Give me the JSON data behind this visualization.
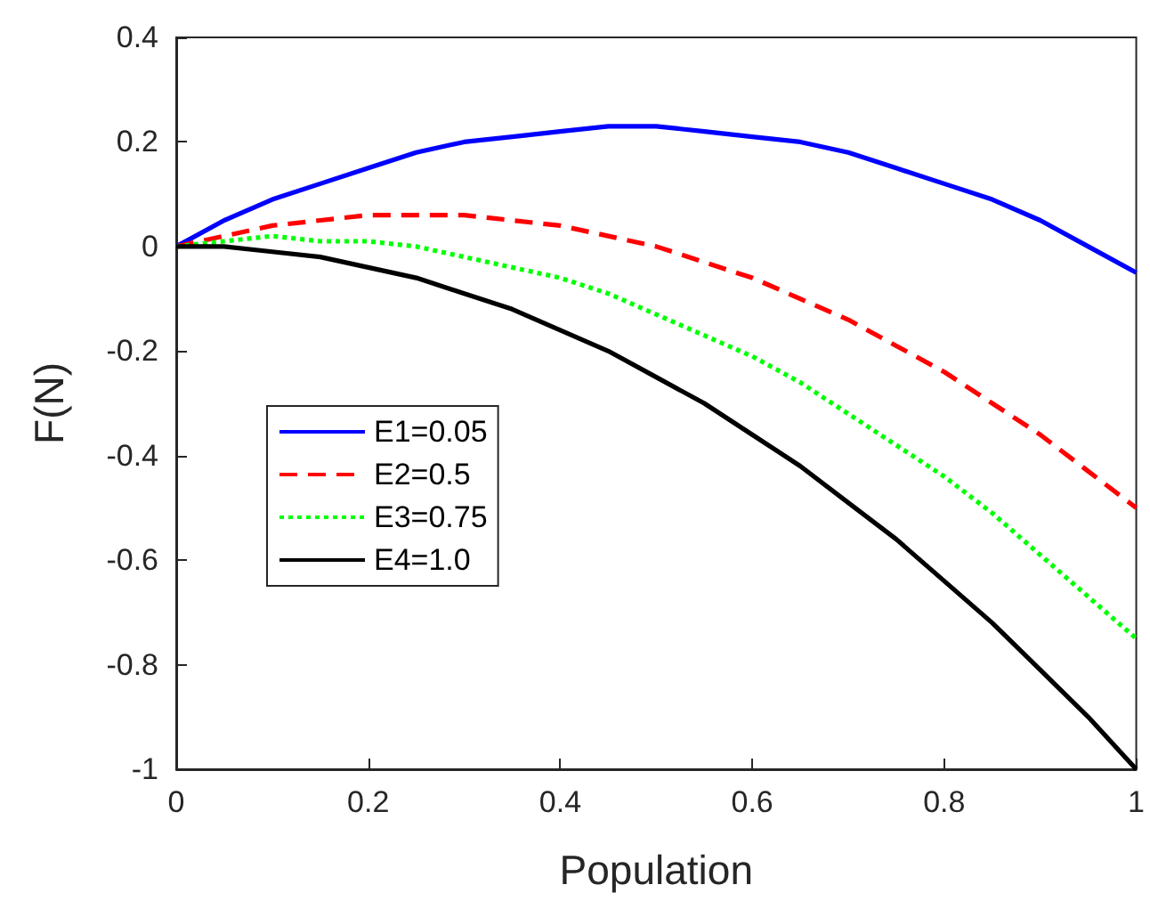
{
  "chart_data": {
    "type": "line",
    "xlabel": "Population",
    "ylabel": "F(N)",
    "x": [
      0,
      0.05,
      0.1,
      0.15,
      0.2,
      0.25,
      0.3,
      0.35,
      0.4,
      0.45,
      0.5,
      0.55,
      0.6,
      0.65,
      0.7,
      0.75,
      0.8,
      0.85,
      0.9,
      0.95,
      1
    ],
    "series": [
      {
        "name": "E1=0.05",
        "color": "#0000ff",
        "line_style": "solid",
        "values": [
          0,
          0.05,
          0.09,
          0.12,
          0.15,
          0.18,
          0.2,
          0.21,
          0.22,
          0.23,
          0.23,
          0.22,
          0.21,
          0.2,
          0.18,
          0.15,
          0.12,
          0.09,
          0.05,
          0,
          -0.05
        ]
      },
      {
        "name": "E2=0.5",
        "color": "#ff0000",
        "line_style": "dashed",
        "values": [
          0,
          0.02,
          0.04,
          0.05,
          0.06,
          0.06,
          0.06,
          0.05,
          0.04,
          0.02,
          0,
          -0.03,
          -0.06,
          -0.1,
          -0.14,
          -0.19,
          -0.24,
          -0.3,
          -0.36,
          -0.43,
          -0.5
        ]
      },
      {
        "name": "E3=0.75",
        "color": "#00ff00",
        "line_style": "dotted",
        "values": [
          0,
          0.01,
          0.02,
          0.01,
          0.01,
          0,
          -0.02,
          -0.04,
          -0.06,
          -0.09,
          -0.13,
          -0.17,
          -0.21,
          -0.26,
          -0.32,
          -0.38,
          -0.44,
          -0.51,
          -0.59,
          -0.67,
          -0.75
        ]
      },
      {
        "name": "E4=1.0",
        "color": "#000000",
        "line_style": "solid",
        "values": [
          0,
          0,
          -0.01,
          -0.02,
          -0.04,
          -0.06,
          -0.09,
          -0.12,
          -0.16,
          -0.2,
          -0.25,
          -0.3,
          -0.36,
          -0.42,
          -0.49,
          -0.56,
          -0.64,
          -0.72,
          -0.81,
          -0.9,
          -1
        ]
      }
    ],
    "xlim": [
      0,
      1
    ],
    "xticks": [
      0,
      0.2,
      0.4,
      0.6,
      0.8,
      1
    ],
    "ylim": [
      -1,
      0.4
    ],
    "yticks": [
      -1,
      -0.8,
      -0.6,
      -0.4,
      -0.2,
      0,
      0.2,
      0.4
    ],
    "grid": false,
    "legend": "left",
    "marker": "none"
  }
}
